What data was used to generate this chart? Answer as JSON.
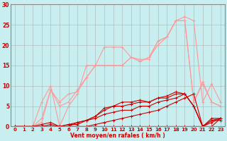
{
  "bg_color": "#c8eef0",
  "grid_color": "#aaaaaa",
  "line_color_dark": "#cc0000",
  "line_color_light": "#ff9999",
  "xlabel": "Vent moyen/en rafales ( km/h )",
  "xlim": [
    -0.5,
    23.5
  ],
  "ylim": [
    0,
    30
  ],
  "xticks": [
    0,
    1,
    2,
    3,
    4,
    5,
    6,
    7,
    8,
    9,
    10,
    11,
    12,
    13,
    14,
    15,
    16,
    17,
    18,
    19,
    20,
    21,
    22,
    23
  ],
  "yticks": [
    0,
    5,
    10,
    15,
    20,
    25,
    30
  ],
  "series_light": [
    {
      "x": [
        0,
        1,
        2,
        3,
        4,
        5,
        6,
        7,
        8,
        9,
        10,
        11,
        12,
        13,
        14,
        15,
        16,
        17,
        18,
        19,
        20,
        21,
        22,
        23
      ],
      "y": [
        0,
        0,
        0,
        6,
        10,
        0,
        5,
        8,
        15,
        15,
        19.5,
        19.5,
        19.5,
        17,
        16.5,
        16.5,
        21,
        22,
        26,
        27,
        26,
        6,
        10.5,
        6
      ]
    },
    {
      "x": [
        0,
        1,
        2,
        3,
        4,
        5,
        6,
        7,
        8,
        9,
        10,
        11,
        12,
        13,
        14,
        15,
        16,
        17,
        18,
        19,
        20,
        21,
        22,
        23
      ],
      "y": [
        0,
        0,
        0,
        2,
        9,
        6,
        8,
        8.5,
        12,
        15,
        15,
        15,
        15,
        17,
        16,
        17,
        21,
        22,
        26,
        26,
        6,
        10.5,
        6,
        5
      ]
    },
    {
      "x": [
        0,
        1,
        2,
        3,
        4,
        5,
        6,
        7,
        8,
        9,
        10,
        11,
        12,
        13,
        14,
        15,
        16,
        17,
        18,
        19,
        20,
        21,
        22,
        23
      ],
      "y": [
        0,
        0,
        0,
        1,
        9,
        5,
        6,
        9,
        12,
        15,
        15,
        15,
        15,
        17,
        16,
        17,
        20,
        22,
        26,
        26,
        6,
        11,
        6,
        5
      ]
    }
  ],
  "series_dark": [
    {
      "x": [
        0,
        1,
        2,
        3,
        4,
        5,
        6,
        7,
        8,
        9,
        10,
        11,
        12,
        13,
        14,
        15,
        16,
        17,
        18,
        19,
        20,
        21,
        22,
        23
      ],
      "y": [
        0,
        0,
        0,
        0,
        0,
        0,
        0,
        0,
        0,
        0.5,
        1,
        1.5,
        2,
        2.5,
        3,
        3.5,
        4,
        5,
        6,
        7,
        8,
        0,
        1.5,
        1.5
      ]
    },
    {
      "x": [
        0,
        1,
        2,
        3,
        4,
        5,
        6,
        7,
        8,
        9,
        10,
        11,
        12,
        13,
        14,
        15,
        16,
        17,
        18,
        19,
        20,
        21,
        22,
        23
      ],
      "y": [
        0,
        0,
        0,
        0,
        0,
        0,
        0.5,
        0.5,
        1.5,
        2,
        3,
        3.5,
        4,
        4,
        5,
        5,
        6,
        6.5,
        7,
        8,
        5,
        0,
        1,
        2
      ]
    },
    {
      "x": [
        0,
        1,
        2,
        3,
        4,
        5,
        6,
        7,
        8,
        9,
        10,
        11,
        12,
        13,
        14,
        15,
        16,
        17,
        18,
        19,
        20,
        21,
        22,
        23
      ],
      "y": [
        0,
        0,
        0,
        0,
        0.5,
        0,
        0.5,
        1,
        1.5,
        2.5,
        4,
        5,
        5,
        5.5,
        6,
        6,
        7,
        7,
        8,
        8,
        5,
        0,
        2,
        2
      ]
    },
    {
      "x": [
        0,
        1,
        2,
        3,
        4,
        5,
        6,
        7,
        8,
        9,
        10,
        11,
        12,
        13,
        14,
        15,
        16,
        17,
        18,
        19,
        20,
        21,
        22,
        23
      ],
      "y": [
        0,
        0,
        0,
        0.5,
        1,
        0,
        0,
        1,
        1.5,
        2.5,
        4.5,
        5,
        6,
        6,
        6.5,
        6,
        7,
        7.5,
        8.5,
        8,
        5,
        0,
        1.5,
        2
      ]
    },
    {
      "x": [
        0,
        1,
        2,
        3,
        4,
        5,
        6,
        7,
        8,
        9,
        10,
        11,
        12,
        13,
        14,
        15,
        16,
        17,
        18,
        19,
        20,
        21,
        22,
        23
      ],
      "y": [
        0,
        0,
        0,
        0,
        0,
        0,
        0,
        0,
        0,
        0,
        0,
        0,
        0,
        0,
        0,
        0,
        0,
        0,
        0,
        0,
        0,
        0,
        0,
        2
      ]
    }
  ]
}
